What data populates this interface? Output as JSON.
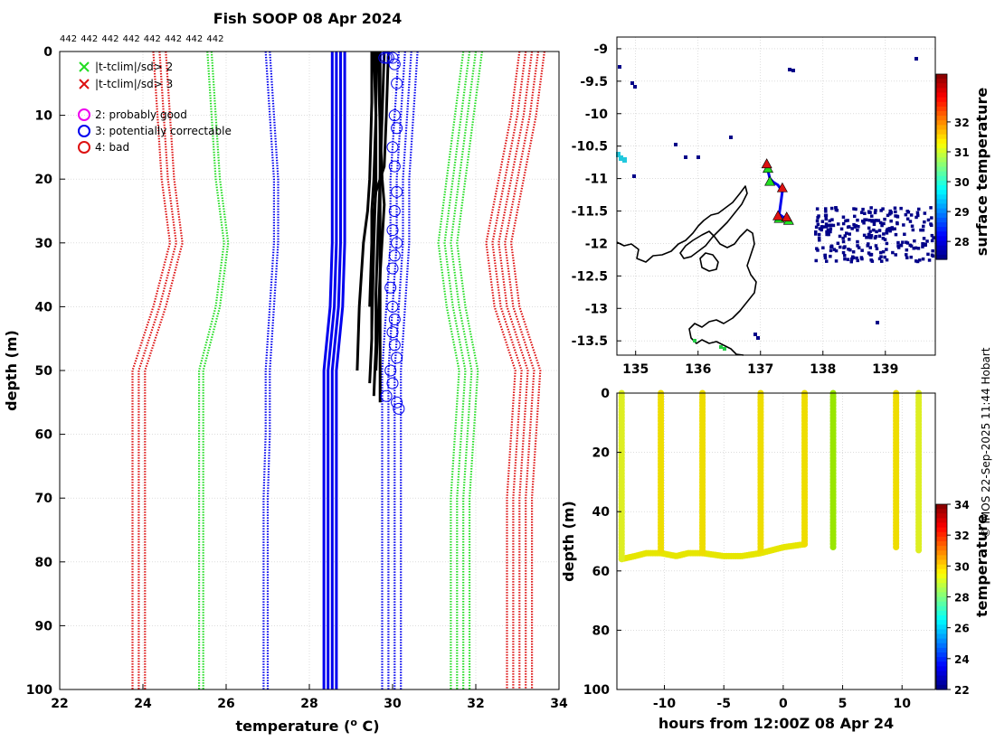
{
  "colors": {
    "green": "#22dd22",
    "red": "#dd1111",
    "blue": "#0000ee",
    "black": "#000000",
    "magenta": "#ee00ee",
    "yellow_line": "#e8e800"
  },
  "chart_data": [
    {
      "id": "profile",
      "type": "line",
      "title": "Fish SOOP 08 Apr 2024",
      "xlabel": "temperature (° C)",
      "xlabel_main": "temperature (",
      "xlabel_sup": "o",
      "xlabel_end": " C)",
      "ylabel": "depth (m)",
      "xlim": [
        22,
        34
      ],
      "ylim": [
        100,
        0
      ],
      "xticks": [
        22,
        24,
        26,
        28,
        30,
        32,
        34
      ],
      "yticks": [
        0,
        10,
        20,
        30,
        40,
        50,
        60,
        70,
        80,
        90,
        100
      ],
      "top_labels": [
        "442",
        "442",
        "442",
        "442",
        "442",
        "442",
        "442",
        "442"
      ],
      "legend": [
        {
          "marker": "x",
          "color": "#22dd22",
          "label": "|t-tclim|/sd> 2"
        },
        {
          "marker": "x",
          "color": "#dd1111",
          "label": "|t-tclim|/sd> 3"
        },
        {
          "marker": "o",
          "color": "#ee00ee",
          "label": "2: probably good"
        },
        {
          "marker": "o",
          "color": "#0000ee",
          "label": "3: potentially correctable"
        },
        {
          "marker": "o",
          "color": "#dd1111",
          "label": "4: bad"
        }
      ],
      "climatology": {
        "depths": [
          0,
          10,
          20,
          30,
          40,
          50,
          60,
          70,
          80,
          90,
          100
        ],
        "mean": [
          28.7,
          28.7,
          28.7,
          28.7,
          28.65,
          28.5,
          28.5,
          28.5,
          28.5,
          28.5,
          28.5
        ],
        "mean_offsets": [
          -0.15,
          -0.05,
          0.05,
          0.15
        ],
        "sd_lines": [
          {
            "color": "#0000ee",
            "t": [
              30.4,
              30.3,
              30.2,
              30.2,
              30.1,
              30.0,
              30.0,
              30.0,
              30.0,
              30.0,
              30.0
            ],
            "offsets": [
              -0.25,
              -0.1,
              0.05,
              0.2
            ]
          },
          {
            "color": "#0000ee",
            "t": [
              27.0,
              27.1,
              27.2,
              27.2,
              27.1,
              27.0,
              27.0,
              26.95,
              26.95,
              26.95,
              26.95
            ],
            "offsets": [
              -0.05,
              0.05
            ]
          },
          {
            "color": "#22dd22",
            "t": [
              32.0,
              31.8,
              31.6,
              31.4,
              31.6,
              31.9,
              31.8,
              31.7,
              31.7,
              31.7,
              31.7
            ],
            "offsets": [
              -0.3,
              -0.15,
              0.0,
              0.15
            ]
          },
          {
            "color": "#22dd22",
            "t": [
              25.6,
              25.7,
              25.8,
              26.0,
              25.8,
              25.4,
              25.4,
              25.4,
              25.4,
              25.4,
              25.4
            ],
            "offsets": [
              -0.05,
              0.05
            ]
          },
          {
            "color": "#dd1111",
            "t": [
              33.4,
              33.2,
              32.9,
              32.6,
              32.8,
              33.3,
              33.2,
              33.1,
              33.1,
              33.1,
              33.1
            ],
            "offsets": [
              -0.35,
              -0.2,
              -0.05,
              0.1,
              0.25
            ]
          },
          {
            "color": "#dd1111",
            "t": [
              24.4,
              24.5,
              24.6,
              24.8,
              24.4,
              23.9,
              23.9,
              23.9,
              23.9,
              23.9,
              23.9
            ],
            "offsets": [
              -0.15,
              0.0,
              0.15
            ]
          }
        ]
      },
      "observed_profiles": [
        {
          "t": [
            29.6,
            29.6,
            29.55,
            29.5,
            29.5,
            29.5,
            29.45
          ],
          "depth": [
            0,
            10,
            20,
            25,
            35,
            45,
            52
          ]
        },
        {
          "t": [
            29.7,
            29.7,
            29.7,
            29.65,
            29.6,
            29.6,
            29.55
          ],
          "depth": [
            0,
            10,
            20,
            28,
            38,
            46,
            54
          ]
        },
        {
          "t": [
            29.8,
            29.75,
            29.7,
            29.7,
            29.7,
            29.7,
            29.7
          ],
          "depth": [
            0,
            10,
            20,
            30,
            40,
            48,
            55
          ]
        },
        {
          "t": [
            29.5,
            29.5,
            29.45,
            29.4,
            29.3,
            29.2,
            29.15
          ],
          "depth": [
            0,
            8,
            20,
            25,
            30,
            40,
            50
          ]
        },
        {
          "t": [
            29.65,
            29.7,
            29.75,
            29.8,
            29.7,
            29.6
          ],
          "depth": [
            0,
            12,
            20,
            24,
            35,
            50
          ]
        },
        {
          "t": [
            29.9,
            29.85,
            29.8,
            29.6,
            29.5,
            29.45
          ],
          "depth": [
            0,
            10,
            18,
            22,
            30,
            40
          ]
        },
        {
          "t": [
            29.55,
            29.6,
            29.6,
            29.55,
            29.5
          ],
          "depth": [
            0,
            10,
            20,
            30,
            44
          ]
        }
      ],
      "flagged_points": {
        "marker": "o",
        "color": "#0000ee",
        "t": [
          29.8,
          29.85,
          29.9,
          30.0,
          30.05,
          30.1,
          30.05,
          30.1,
          30.0,
          30.05,
          30.1,
          30.05,
          30.0,
          30.1,
          30.05,
          30.0,
          29.95,
          30.0,
          30.05,
          30.0,
          30.05,
          30.1,
          29.95,
          30.0,
          29.85,
          30.1,
          30.15
        ],
        "depth": [
          1,
          1,
          1,
          1,
          2,
          5,
          10,
          12,
          15,
          18,
          22,
          25,
          28,
          30,
          32,
          34,
          37,
          40,
          42,
          44,
          46,
          48,
          50,
          52,
          54,
          55,
          56
        ]
      }
    },
    {
      "id": "map",
      "type": "scatter",
      "xlim": [
        134.7,
        139.8
      ],
      "ylim": [
        -13.72,
        -8.82
      ],
      "xticks": [
        135,
        136,
        137,
        138,
        139
      ],
      "yticks": [
        -9,
        -9.5,
        -10,
        -10.5,
        -11,
        -11.5,
        -12,
        -12.5,
        -13,
        -13.5
      ],
      "colorbar": {
        "label": "surface temperature",
        "min": 27.4,
        "max": 33.6,
        "ticks": [
          28,
          29,
          30,
          31,
          32
        ]
      },
      "track": {
        "lon": [
          137.1,
          137.15,
          137.2,
          137.28,
          137.35,
          137.3,
          137.4
        ],
        "lat": [
          -10.8,
          -11.0,
          -11.05,
          -11.1,
          -11.2,
          -11.55,
          -11.62
        ]
      },
      "flag_red_triangles": {
        "lon": [
          137.1,
          137.35,
          137.28,
          137.42
        ],
        "lat": [
          -10.78,
          -11.15,
          -11.58,
          -11.6
        ]
      },
      "flag_green_triangles": {
        "lon": [
          137.12,
          137.15,
          137.3,
          137.45
        ],
        "lat": [
          -10.85,
          -11.05,
          -11.62,
          -11.65
        ]
      }
    },
    {
      "id": "section",
      "type": "scatter",
      "xlabel": "hours from 12:00Z 08 Apr 24",
      "ylabel": "depth (m)",
      "xlim": [
        -14,
        12.8
      ],
      "ylim": [
        100,
        0
      ],
      "xticks": [
        -10,
        -5,
        0,
        5,
        10
      ],
      "yticks": [
        0,
        20,
        40,
        60,
        80,
        100
      ],
      "colorbar": {
        "label": "temperature",
        "min": 22,
        "max": 34,
        "ticks": [
          22,
          24,
          26,
          28,
          30,
          32,
          34
        ]
      },
      "casts": [
        {
          "hours": -13.6,
          "max_depth": 56
        },
        {
          "hours": -10.3,
          "max_depth": 53
        },
        {
          "hours": -6.8,
          "max_depth": 54
        },
        {
          "hours": -1.9,
          "max_depth": 53
        },
        {
          "hours": 1.8,
          "max_depth": 51
        },
        {
          "hours": 4.2,
          "max_depth": 52
        },
        {
          "hours": 9.5,
          "max_depth": 52
        },
        {
          "hours": 11.4,
          "max_depth": 53
        }
      ],
      "bottom_trace": {
        "hours": [
          -13.6,
          -12.5,
          -11.5,
          -10.3,
          -9.0,
          -8.0,
          -6.8,
          -5.0,
          -3.5,
          -1.9,
          0.0,
          1.8
        ],
        "depth": [
          56,
          55,
          54,
          54,
          55,
          54,
          54,
          55,
          55,
          54,
          52,
          51
        ]
      }
    }
  ],
  "footer": {
    "credit": "© IMOS 22-Sep-2025 11:44 Hobart"
  }
}
